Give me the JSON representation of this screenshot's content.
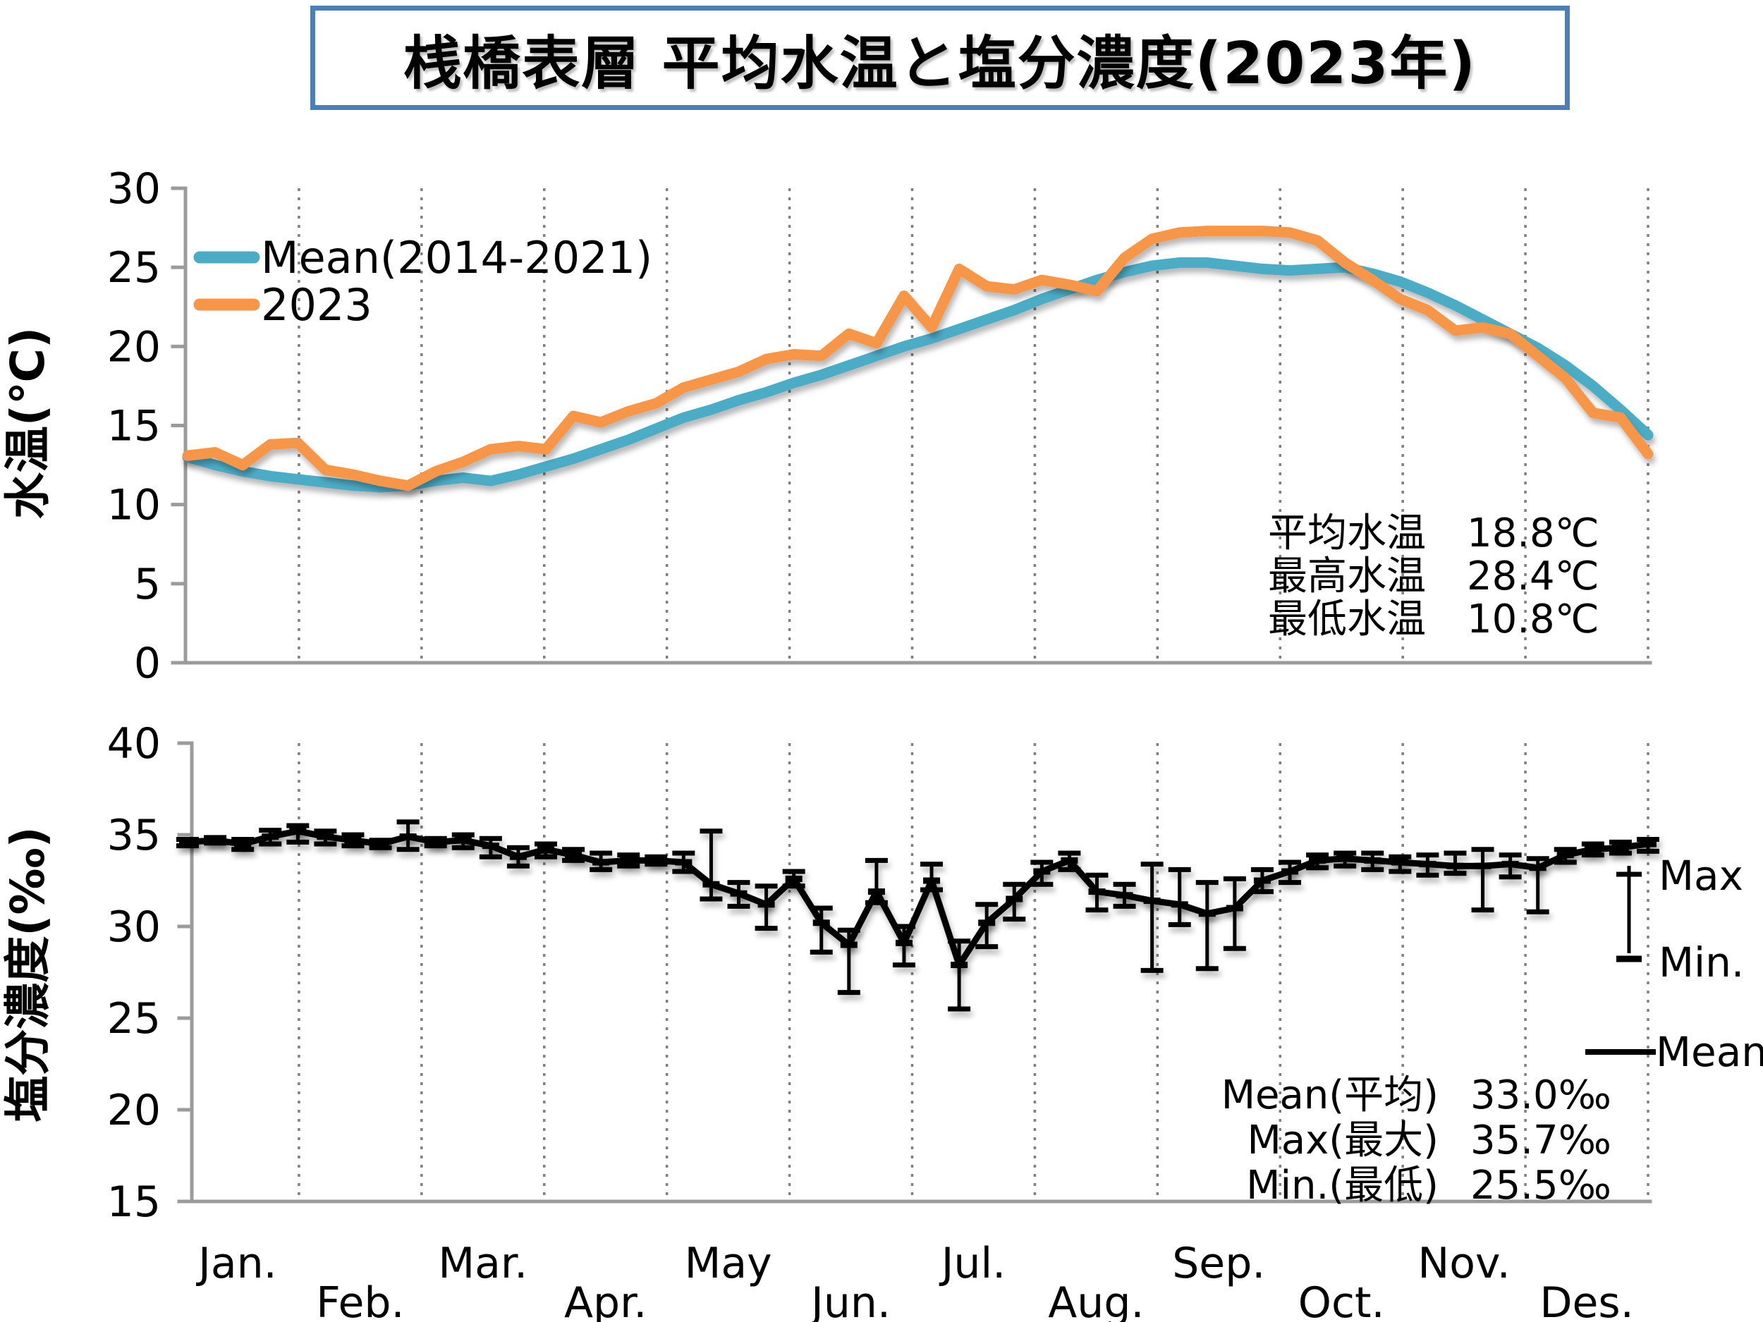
{
  "title": "桟橋表層 平均水温と塩分濃度(2023年)",
  "colors": {
    "mean_line": "#4BACC6",
    "year2023_line": "#F79646",
    "salinity_line": "#000000",
    "axis": "#9b9b9b",
    "gridline": "#808080",
    "title_border": "#4a80b8",
    "text": "#000000"
  },
  "months": [
    "Jan.",
    "Feb.",
    "Mar.",
    "Apr.",
    "May",
    "Jun.",
    "Jul.",
    "Aug.",
    "Sep.",
    "Oct.",
    "Nov.",
    "Des."
  ],
  "chart_data": [
    {
      "type": "line",
      "title": "桟橋表層 平均水温と塩分濃度(2023年)",
      "ylabel": "水温(℃)",
      "xlabel": "",
      "ylim": [
        0,
        30
      ],
      "yticks": [
        0,
        5,
        10,
        15,
        20,
        25,
        30
      ],
      "grid": "vertical-dotted-monthly",
      "legend_position": "upper-left-inside",
      "x_unit": "weekly",
      "series": [
        {
          "name": "Mean(2014-2021)",
          "color": "#4BACC6",
          "values": [
            13.0,
            12.5,
            12.1,
            11.8,
            11.6,
            11.4,
            11.2,
            11.1,
            11.2,
            11.5,
            11.7,
            11.5,
            11.9,
            12.4,
            12.9,
            13.5,
            14.1,
            14.8,
            15.5,
            16.0,
            16.6,
            17.1,
            17.7,
            18.2,
            18.8,
            19.4,
            20.0,
            20.5,
            21.1,
            21.7,
            22.3,
            23.0,
            23.6,
            24.2,
            24.7,
            25.1,
            25.3,
            25.3,
            25.1,
            24.9,
            24.8,
            24.9,
            25.0,
            24.6,
            24.1,
            23.4,
            22.6,
            21.7,
            20.8,
            19.9,
            18.8,
            17.5,
            16.0,
            14.4
          ]
        },
        {
          "name": "2023",
          "color": "#F79646",
          "values": [
            13.1,
            13.3,
            12.5,
            13.8,
            13.9,
            12.2,
            11.9,
            11.5,
            11.2,
            12.1,
            12.7,
            13.5,
            13.7,
            13.5,
            15.6,
            15.2,
            15.9,
            16.4,
            17.4,
            17.9,
            18.4,
            19.2,
            19.5,
            19.4,
            20.8,
            20.2,
            23.2,
            21.2,
            24.9,
            23.8,
            23.6,
            24.2,
            23.9,
            23.5,
            25.6,
            26.8,
            27.2,
            27.3,
            27.3,
            27.3,
            27.2,
            26.7,
            25.3,
            24.2,
            23.0,
            22.3,
            21.0,
            21.2,
            20.8,
            19.4,
            18.0,
            15.8,
            15.5,
            13.2
          ]
        }
      ],
      "stats": [
        {
          "label": "平均水温",
          "value": "18.8℃"
        },
        {
          "label": "最高水温",
          "value": "28.4℃"
        },
        {
          "label": "最低水温",
          "value": "10.8℃"
        }
      ]
    },
    {
      "type": "line-errorbar",
      "ylabel": "塩分濃度(‰)",
      "xlabel": "",
      "ylim": [
        15,
        40
      ],
      "yticks": [
        15,
        20,
        25,
        30,
        35,
        40
      ],
      "grid": "vertical-dotted-monthly",
      "legend_position": "right-outside",
      "legend": [
        {
          "label": "Max"
        },
        {
          "label": "Min."
        },
        {
          "label": "Mean"
        }
      ],
      "x_unit": "weekly",
      "series": [
        {
          "name": "Mean",
          "color": "#000000",
          "values": [
            34.6,
            34.7,
            34.5,
            34.9,
            35.2,
            34.9,
            34.7,
            34.5,
            34.9,
            34.6,
            34.7,
            34.4,
            33.8,
            34.2,
            33.9,
            33.5,
            33.6,
            33.6,
            33.5,
            32.3,
            31.8,
            31.2,
            32.6,
            30.2,
            29.0,
            31.9,
            29.1,
            32.5,
            27.9,
            30.2,
            31.5,
            33.0,
            33.6,
            31.9,
            31.7,
            31.4,
            31.2,
            30.7,
            31.0,
            32.5,
            33.0,
            33.6,
            33.7,
            33.6,
            33.5,
            33.4,
            33.3,
            33.3,
            33.4,
            33.2,
            33.9,
            34.2,
            34.3,
            34.5
          ],
          "max": [
            34.75,
            34.85,
            34.75,
            35.25,
            35.5,
            35.2,
            35.0,
            34.7,
            35.7,
            34.8,
            35.0,
            34.8,
            34.3,
            34.5,
            34.2,
            34.0,
            33.9,
            33.8,
            34.0,
            35.2,
            32.4,
            32.2,
            33.0,
            31.0,
            29.8,
            33.6,
            30.0,
            33.4,
            29.2,
            31.2,
            32.3,
            33.5,
            34.0,
            32.8,
            32.3,
            33.4,
            33.1,
            32.4,
            32.6,
            33.1,
            33.5,
            33.9,
            34.0,
            34.0,
            33.8,
            33.9,
            34.0,
            34.2,
            33.9,
            33.7,
            34.2,
            34.5,
            34.6,
            34.75
          ],
          "min": [
            34.4,
            34.55,
            34.2,
            34.5,
            34.6,
            34.5,
            34.4,
            34.3,
            34.2,
            34.4,
            34.3,
            33.8,
            33.3,
            33.8,
            33.6,
            33.1,
            33.3,
            33.4,
            33.0,
            31.5,
            31.1,
            29.9,
            32.2,
            28.6,
            26.4,
            31.3,
            27.9,
            32.0,
            25.5,
            28.9,
            30.4,
            32.3,
            33.1,
            30.9,
            31.1,
            27.6,
            30.1,
            27.7,
            28.8,
            31.9,
            32.4,
            33.2,
            33.3,
            33.1,
            33.0,
            32.8,
            32.9,
            30.9,
            32.7,
            30.8,
            33.5,
            33.9,
            34.0,
            34.1
          ]
        }
      ],
      "stats": [
        {
          "label": "Mean(平均)",
          "value": "33.0‰"
        },
        {
          "label": "Max(最大)",
          "value": "35.7‰"
        },
        {
          "label": "Min.(最低)",
          "value": "25.5‰"
        }
      ]
    }
  ]
}
